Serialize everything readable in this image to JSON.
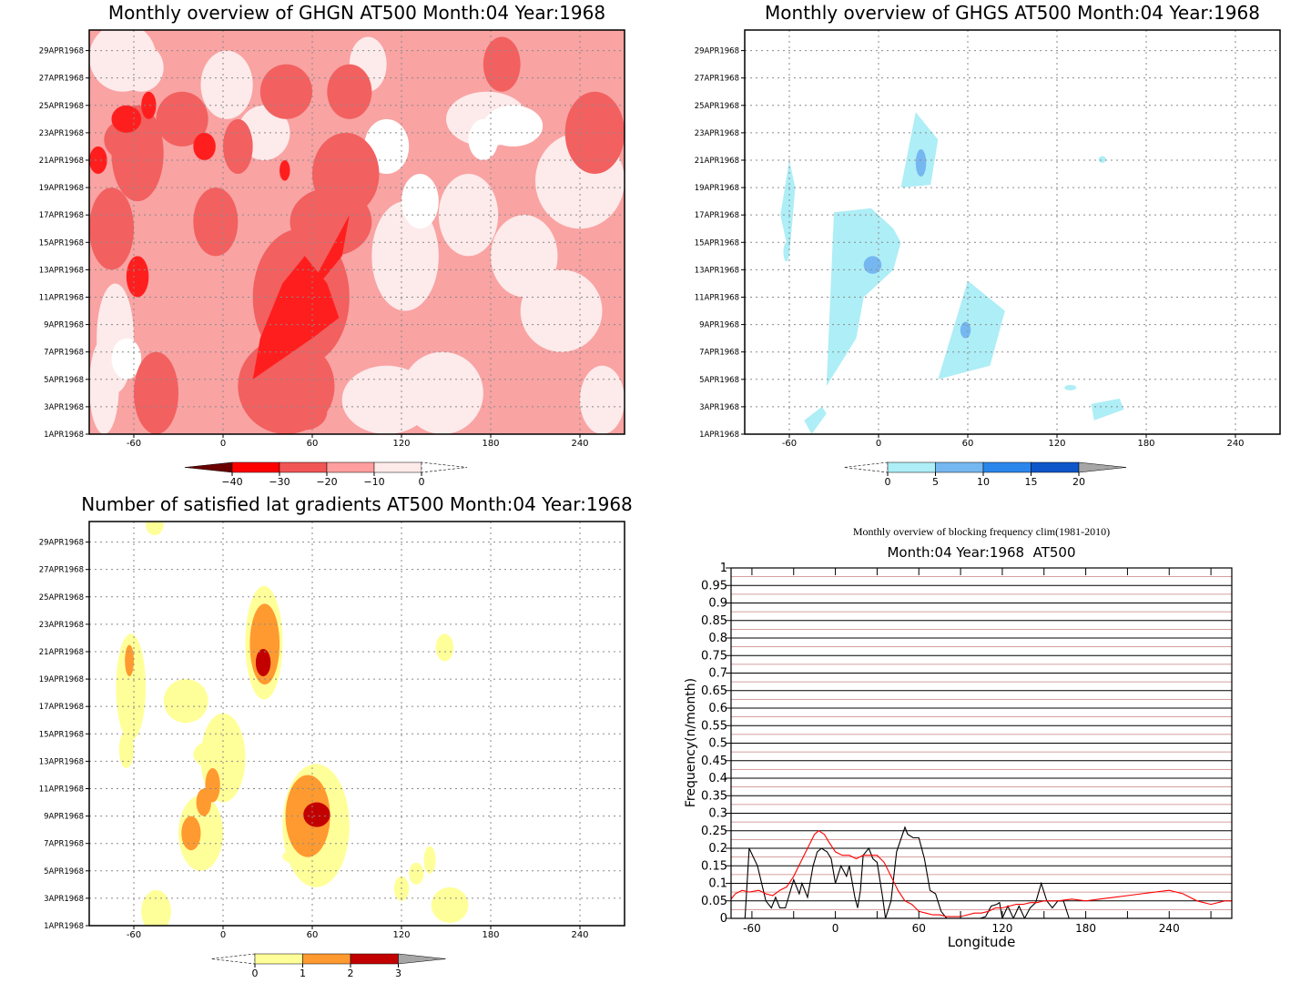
{
  "chart_data": [
    {
      "type": "heatmap",
      "title": "Monthly overview of GHGN AT500 Month:04 Year:1968",
      "xlabel": "",
      "ylabel": "",
      "x_ticks": [
        -60,
        0,
        60,
        120,
        180,
        240
      ],
      "xlim": [
        -90,
        270
      ],
      "y_ticks": [
        "1APR1968",
        "3APR1968",
        "5APR1968",
        "7APR1968",
        "9APR1968",
        "11APR1968",
        "13APR1968",
        "15APR1968",
        "17APR1968",
        "19APR1968",
        "21APR1968",
        "23APR1968",
        "25APR1968",
        "27APR1968",
        "29APR1968"
      ],
      "grid": true,
      "colorbar": {
        "labels": [
          "-40",
          "-30",
          "-20",
          "-10",
          "0"
        ],
        "colors": [
          "#6b0000",
          "#ff0000",
          "#f25555",
          "#ff9e9e",
          "#ffeaea"
        ]
      },
      "shading_colors": [
        "#fdeaea",
        "#f9a3a3",
        "#f26060",
        "#ff1e1e"
      ]
    },
    {
      "type": "heatmap",
      "title": "Monthly overview of GHGS AT500 Month:04 Year:1968",
      "xlabel": "",
      "ylabel": "",
      "x_ticks": [
        -60,
        0,
        60,
        120,
        180,
        240
      ],
      "xlim": [
        -90,
        270
      ],
      "y_ticks": [
        "1APR1968",
        "3APR1968",
        "5APR1968",
        "7APR1968",
        "9APR1968",
        "11APR1968",
        "13APR1968",
        "15APR1968",
        "17APR1968",
        "19APR1968",
        "21APR1968",
        "23APR1968",
        "25APR1968",
        "27APR1968",
        "29APR1968"
      ],
      "grid": true,
      "colorbar": {
        "labels": [
          "0",
          "5",
          "10",
          "15",
          "20"
        ],
        "colors": [
          "#aeeef6",
          "#75b7f0",
          "#2b86ec",
          "#0e55c9",
          "#a6a6a6"
        ]
      },
      "regions": [
        {
          "color": "#aeeef6",
          "lon": [
            -60,
            -66,
            -60,
            -56
          ],
          "day": [
            14,
            17,
            21,
            19
          ]
        },
        {
          "color": "#aeeef6",
          "lon": [
            -64,
            -60
          ],
          "day": [
            13.6,
            15
          ]
        },
        {
          "color": "#aeeef6",
          "lon": [
            -35,
            -15,
            -10,
            10,
            15,
            10,
            -5,
            -30
          ],
          "day": [
            4.5,
            8,
            11,
            13,
            15,
            16,
            17.5,
            17.2
          ]
        },
        {
          "color": "#75b7f0",
          "lon": [
            -10,
            2
          ],
          "day": [
            12.7,
            14
          ]
        },
        {
          "color": "#aeeef6",
          "lon": [
            15,
            35,
            40,
            25
          ],
          "day": [
            19,
            19.2,
            22.5,
            24.5
          ]
        },
        {
          "color": "#75b7f0",
          "lon": [
            25,
            32
          ],
          "day": [
            19.8,
            21.8
          ]
        },
        {
          "color": "#aeeef6",
          "lon": [
            40,
            75,
            85,
            60
          ],
          "day": [
            5,
            6,
            10,
            12.2
          ]
        },
        {
          "color": "#75b7f0",
          "lon": [
            55,
            62
          ],
          "day": [
            8,
            9.2
          ]
        },
        {
          "color": "#aeeef6",
          "lon": [
            -45,
            -35,
            -38,
            -50
          ],
          "day": [
            1,
            2.5,
            3,
            2
          ]
        },
        {
          "color": "#aeeef6",
          "lon": [
            145,
            165,
            162,
            143
          ],
          "day": [
            2,
            2.8,
            3.6,
            3.2
          ]
        },
        {
          "color": "#aeeef6",
          "lon": [
            148,
            153
          ],
          "day": [
            20.8,
            21.3
          ]
        },
        {
          "color": "#aeeef6",
          "lon": [
            125,
            133
          ],
          "day": [
            4.2,
            4.6
          ]
        }
      ]
    },
    {
      "type": "heatmap",
      "title": "Number of satisfied lat gradients AT500 Month:04 Year:1968",
      "xlabel": "",
      "ylabel": "",
      "x_ticks": [
        -60,
        0,
        60,
        120,
        180,
        240
      ],
      "xlim": [
        -90,
        270
      ],
      "y_ticks": [
        "1APR1968",
        "3APR1968",
        "5APR1968",
        "7APR1968",
        "9APR1968",
        "11APR1968",
        "13APR1968",
        "15APR1968",
        "17APR1968",
        "19APR1968",
        "21APR1968",
        "23APR1968",
        "25APR1968",
        "27APR1968",
        "29APR1968"
      ],
      "grid": true,
      "colorbar": {
        "labels": [
          "0",
          "1",
          "2",
          "3"
        ],
        "colors": [
          "#ffff99",
          "#ff9a30",
          "#c30000",
          "#a6a6a6"
        ]
      }
    },
    {
      "type": "line",
      "title": "Monthly overview of blocking frequency clim(1981-2010)",
      "subtitle": "Month:04 Year:1968  AT500",
      "xlabel": "Longitude",
      "ylabel": "Frequency(n/month)",
      "xlim": [
        -75,
        285
      ],
      "ylim": [
        0,
        1
      ],
      "x_ticks": [
        -60,
        0,
        60,
        120,
        180,
        240
      ],
      "y_ticks": [
        "0",
        "0.05",
        "0.1",
        "0.15",
        "0.2",
        "0.25",
        "0.3",
        "0.35",
        "0.4",
        "0.45",
        "0.5",
        "0.55",
        "0.6",
        "0.65",
        "0.7",
        "0.75",
        "0.8",
        "0.85",
        "0.9",
        "0.95",
        "1"
      ],
      "series": [
        {
          "color": "#000000",
          "x": [
            -65,
            -62,
            -56,
            -50,
            -46,
            -43,
            -40,
            -36,
            -33,
            -30,
            -26,
            -24,
            -20,
            -16,
            -13,
            -10,
            -6,
            -3,
            0,
            4,
            8,
            10,
            14,
            16,
            18,
            20,
            24,
            27,
            30,
            34,
            36,
            40,
            44,
            50,
            52,
            56,
            60,
            64,
            68,
            72,
            76,
            80,
            84,
            88,
            96,
            100,
            104,
            108,
            112,
            116,
            118,
            120,
            124,
            128,
            132,
            136,
            140,
            144,
            148,
            152,
            156,
            160,
            164,
            168
          ],
          "y": [
            0,
            0.2,
            0.15,
            0.05,
            0.03,
            0.06,
            0.03,
            0.03,
            0.07,
            0.11,
            0.07,
            0.1,
            0.06,
            0.15,
            0.19,
            0.2,
            0.19,
            0.17,
            0.1,
            0.15,
            0.12,
            0.15,
            0.06,
            0.03,
            0.08,
            0.18,
            0.2,
            0.17,
            0.16,
            0.06,
            0,
            0.05,
            0.19,
            0.26,
            0.24,
            0.23,
            0.23,
            0.17,
            0.08,
            0.07,
            0.02,
            0,
            0,
            0,
            0,
            0,
            0,
            0.005,
            0.035,
            0.04,
            0.045,
            0,
            0.035,
            0,
            0.035,
            0,
            0.03,
            0.045,
            0.1,
            0.05,
            0.03,
            0.05,
            0.05,
            0.0
          ]
        },
        {
          "color": "#ff0000",
          "x": [
            -75,
            -72,
            -67,
            -62,
            -55,
            -50,
            -45,
            -40,
            -35,
            -30,
            -25,
            -20,
            -15,
            -12,
            -8,
            -5,
            0,
            5,
            10,
            15,
            20,
            25,
            30,
            35,
            40,
            45,
            50,
            55,
            60,
            65,
            70,
            75,
            80,
            85,
            90,
            95,
            100,
            105,
            110,
            115,
            120,
            125,
            130,
            135,
            140,
            145,
            150,
            160,
            170,
            180,
            190,
            200,
            210,
            220,
            230,
            240,
            250,
            260,
            270,
            280,
            285
          ],
          "y": [
            0.055,
            0.07,
            0.08,
            0.075,
            0.08,
            0.07,
            0.065,
            0.08,
            0.09,
            0.12,
            0.16,
            0.2,
            0.24,
            0.25,
            0.24,
            0.22,
            0.19,
            0.18,
            0.18,
            0.17,
            0.18,
            0.18,
            0.18,
            0.16,
            0.12,
            0.08,
            0.05,
            0.04,
            0.02,
            0.015,
            0.01,
            0.01,
            0.005,
            0.005,
            0.005,
            0.01,
            0.015,
            0.015,
            0.02,
            0.03,
            0.03,
            0.035,
            0.04,
            0.04,
            0.045,
            0.045,
            0.05,
            0.05,
            0.055,
            0.05,
            0.055,
            0.06,
            0.065,
            0.07,
            0.075,
            0.08,
            0.07,
            0.05,
            0.04,
            0.05,
            0.05
          ]
        }
      ]
    }
  ]
}
